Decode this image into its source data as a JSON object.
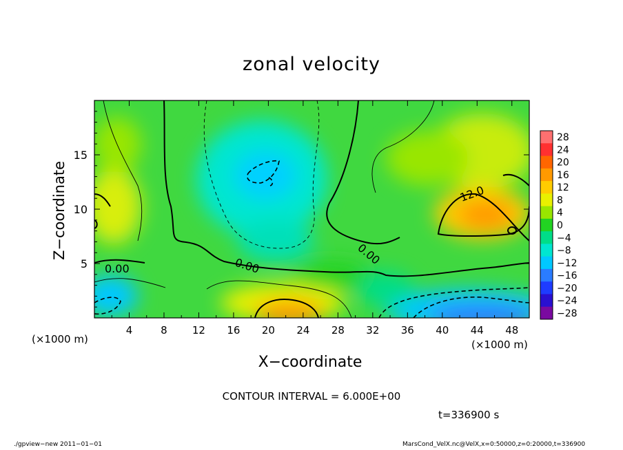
{
  "chart_data": {
    "type": "heatmap",
    "title": "zonal velocity",
    "xlabel": "X−coordinate",
    "ylabel": "Z−coordinate",
    "x_unit_label_left": "(×1000 m)",
    "x_unit_label_right": "(×1000 m)",
    "xlim": [
      0,
      50
    ],
    "ylim": [
      0,
      20
    ],
    "x_ticks": [
      4,
      8,
      12,
      16,
      20,
      24,
      28,
      32,
      36,
      40,
      44,
      48
    ],
    "y_ticks": [
      5,
      10,
      15
    ],
    "colorbar": {
      "levels": [
        28,
        24,
        20,
        16,
        12,
        8,
        4,
        0,
        -4,
        -8,
        -12,
        -16,
        -20,
        -24,
        -28
      ],
      "labels": [
        "28",
        "24",
        "20",
        "16",
        "12",
        "8",
        "4",
        "0",
        "−4",
        "−8",
        "−12",
        "−16",
        "−20",
        "−24",
        "−28"
      ],
      "colors": [
        "#ff7070",
        "#ff3030",
        "#ff6600",
        "#ff9a00",
        "#ffcc00",
        "#e9f000",
        "#99e600",
        "#22d322",
        "#00dd88",
        "#00e6d0",
        "#00c8ff",
        "#2a7cff",
        "#1e3cff",
        "#2a10d0",
        "#7a0aa0"
      ]
    },
    "contour_interval": "CONTOUR INTERVAL = 6.000E+00",
    "contour_labels": [
      "0.00",
      "0.00",
      "0.00",
      "12.0"
    ],
    "grid": false,
    "legend": "right",
    "field_regions": [
      {
        "x": 22,
        "z": 13,
        "value": -12
      },
      {
        "x": 22,
        "z": 8,
        "value": -8
      },
      {
        "x": 20,
        "z": 2,
        "value": 14
      },
      {
        "x": 44,
        "z": 10,
        "value": 15
      },
      {
        "x": 45,
        "z": 1.5,
        "value": -16
      },
      {
        "x": 3,
        "z": 10,
        "value": 8
      },
      {
        "x": 2,
        "z": 2,
        "value": -10
      },
      {
        "x": 42,
        "z": 14,
        "value": 6
      }
    ]
  },
  "annotations": {
    "time": "t=336900 s",
    "footer_left": "./gpview−new   2011−01−01",
    "footer_right": "MarsCond_VelX.nc@VelX,x=0:50000,z=0:20000,t=336900"
  }
}
